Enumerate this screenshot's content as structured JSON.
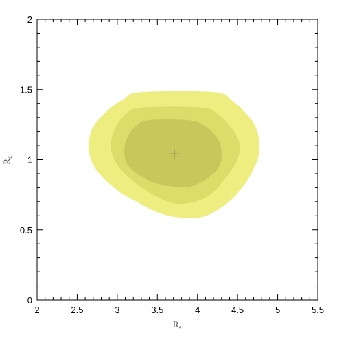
{
  "chart_data": {
    "type": "contour",
    "title": "",
    "xlabel": {
      "main": "R",
      "sub": "s"
    },
    "ylabel": {
      "main": "R",
      "sub": "q"
    },
    "xlim": [
      2,
      5.5
    ],
    "ylim": [
      0,
      2
    ],
    "xticks": [
      "2",
      "2.5",
      "3",
      "3.5",
      "4",
      "4.5",
      "5",
      "5.5"
    ],
    "yticks": [
      "0",
      "0.5",
      "1",
      "1.5",
      "2"
    ],
    "x_minor_step": 0.1,
    "y_minor_step": 0.1,
    "best_fit": {
      "x": 3.71,
      "y": 1.04
    },
    "contours": [
      {
        "level": "outer",
        "color": "#eded80",
        "points": [
          [
            3.73,
            0.59
          ],
          [
            4.05,
            0.59
          ],
          [
            4.3,
            0.66
          ],
          [
            4.5,
            0.76
          ],
          [
            4.67,
            0.9
          ],
          [
            4.77,
            1.05
          ],
          [
            4.74,
            1.21
          ],
          [
            4.62,
            1.32
          ],
          [
            4.43,
            1.42
          ],
          [
            4.21,
            1.48
          ],
          [
            3.3,
            1.48
          ],
          [
            3.08,
            1.43
          ],
          [
            2.86,
            1.34
          ],
          [
            2.68,
            1.21
          ],
          [
            2.65,
            1.05
          ],
          [
            2.75,
            0.92
          ],
          [
            2.98,
            0.79
          ],
          [
            3.24,
            0.7
          ],
          [
            3.48,
            0.63
          ]
        ]
      },
      {
        "level": "middle",
        "color": "#dcdc6a",
        "points": [
          [
            3.7,
            0.69
          ],
          [
            3.97,
            0.7
          ],
          [
            4.18,
            0.76
          ],
          [
            4.35,
            0.87
          ],
          [
            4.5,
            1.0
          ],
          [
            4.52,
            1.12
          ],
          [
            4.42,
            1.23
          ],
          [
            4.26,
            1.32
          ],
          [
            4.06,
            1.37
          ],
          [
            3.3,
            1.37
          ],
          [
            3.1,
            1.32
          ],
          [
            2.97,
            1.22
          ],
          [
            2.92,
            1.1
          ],
          [
            2.98,
            0.98
          ],
          [
            3.15,
            0.87
          ],
          [
            3.38,
            0.77
          ]
        ]
      },
      {
        "level": "inner",
        "color": "#c7c75c",
        "points": [
          [
            3.65,
            0.81
          ],
          [
            3.92,
            0.81
          ],
          [
            4.13,
            0.87
          ],
          [
            4.27,
            0.95
          ],
          [
            4.3,
            1.05
          ],
          [
            4.25,
            1.15
          ],
          [
            4.09,
            1.24
          ],
          [
            3.89,
            1.28
          ],
          [
            3.38,
            1.28
          ],
          [
            3.2,
            1.22
          ],
          [
            3.1,
            1.12
          ],
          [
            3.1,
            1.0
          ],
          [
            3.2,
            0.92
          ],
          [
            3.4,
            0.85
          ]
        ]
      }
    ]
  }
}
